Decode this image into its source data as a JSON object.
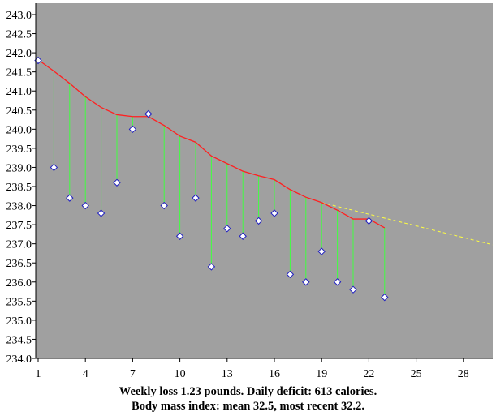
{
  "chart_data": {
    "type": "scatter",
    "xlim": [
      1,
      30
    ],
    "ylim": [
      234.0,
      243.0
    ],
    "x_ticks": [
      1,
      4,
      7,
      10,
      13,
      16,
      19,
      22,
      25,
      28
    ],
    "y_ticks": [
      234.0,
      234.5,
      235.0,
      235.5,
      236.0,
      236.5,
      237.0,
      237.5,
      238.0,
      238.5,
      239.0,
      239.5,
      240.0,
      240.5,
      241.0,
      241.5,
      242.0,
      242.5,
      243.0
    ],
    "grid": false,
    "colors": {
      "plot_background": "#a0a0a0",
      "trend_line": "#ff2020",
      "residual_lines": "#40ff40",
      "projection_line": "#ffff40",
      "marker_fill": "#ffffff",
      "marker_stroke": "#2020c0"
    },
    "measurements": {
      "x": [
        1,
        2,
        3,
        4,
        5,
        6,
        7,
        8,
        9,
        10,
        11,
        12,
        13,
        14,
        15,
        16,
        17,
        18,
        19,
        20,
        21,
        22,
        23
      ],
      "y": [
        241.8,
        239.0,
        238.2,
        238.0,
        237.8,
        238.6,
        240.0,
        240.4,
        238.0,
        237.2,
        238.2,
        236.4,
        237.4,
        237.2,
        237.6,
        237.8,
        236.2,
        236.0,
        236.8,
        236.0,
        235.8,
        237.6,
        235.6
      ]
    },
    "trend": {
      "x": [
        1,
        2,
        3,
        4,
        5,
        6,
        7,
        8,
        9,
        10,
        11,
        12,
        13,
        14,
        15,
        16,
        17,
        18,
        19,
        20,
        21,
        22,
        23
      ],
      "y": [
        241.82,
        241.52,
        241.2,
        240.85,
        240.57,
        240.38,
        240.33,
        240.33,
        240.1,
        239.82,
        239.66,
        239.3,
        239.1,
        238.9,
        238.78,
        238.68,
        238.42,
        238.22,
        238.08,
        237.88,
        237.65,
        237.65,
        237.42
      ]
    },
    "projection": {
      "x": [
        19,
        30.6
      ],
      "y": [
        238.08,
        236.9
      ]
    }
  },
  "caption": {
    "line1": "Weekly loss 1.23 pounds. Daily deficit: 613 calories.",
    "line2": "Body mass index: mean 32.5, most recent 32.2."
  }
}
